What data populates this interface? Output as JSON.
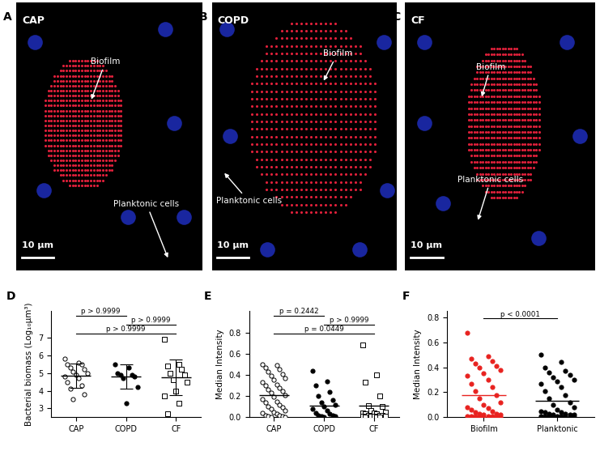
{
  "images": [
    {
      "panel": "A",
      "label": "CAP",
      "annotations": [
        "Biofilm",
        "Planktonic cells"
      ],
      "scale_bar": "10 μm"
    },
    {
      "panel": "B",
      "label": "COPD",
      "annotations": [
        "Biofilm",
        "Planktonic cells"
      ],
      "scale_bar": "10 μm"
    },
    {
      "panel": "C",
      "label": "CF",
      "annotations": [
        "Biofilm",
        "Planktonic cells"
      ],
      "scale_bar": "10 μm"
    }
  ],
  "chart_data": [
    {
      "type": "scatter",
      "title": "D",
      "y_label": "Bacterial biomass (Log₁₀µm³)",
      "ylim": [
        2.5,
        8.5
      ],
      "yticks": [
        3,
        4,
        5,
        6,
        7
      ],
      "series": [
        {
          "name": "CAP",
          "marker": "open_circle",
          "color": "#000000",
          "values": [
            5.8,
            5.6,
            5.5,
            5.5,
            5.3,
            5.2,
            5.1,
            5.0,
            4.9,
            4.8,
            4.7,
            4.5,
            4.3,
            4.1,
            3.8,
            3.5
          ],
          "mean": 4.85,
          "error": 0.7
        },
        {
          "name": "COPD",
          "marker": "circle",
          "color": "#000000",
          "values": [
            5.5,
            5.3,
            5.0,
            4.9,
            4.9,
            4.8,
            4.7,
            4.2,
            3.3
          ],
          "mean": 4.8,
          "error": 0.7
        },
        {
          "name": "CF",
          "marker": "open_square",
          "color": "#000000",
          "values": [
            6.9,
            5.5,
            5.4,
            5.2,
            5.0,
            4.9,
            4.6,
            4.5,
            4.0,
            3.7,
            3.3,
            2.7
          ],
          "mean": 4.75,
          "error": 1.0
        }
      ],
      "comparisons": [
        {
          "groups": [
            "CAP",
            "COPD"
          ],
          "text": "p > 0.9999"
        },
        {
          "groups": [
            "COPD",
            "CF"
          ],
          "text": "p > 0.9999"
        },
        {
          "groups": [
            "CAP",
            "CF"
          ],
          "text": "p > 0.9999"
        }
      ]
    },
    {
      "type": "scatter",
      "title": "E",
      "y_label": "Median Intensity",
      "ylim": [
        0.0,
        1.0
      ],
      "yticks": [
        0.0,
        0.2,
        0.4,
        0.6,
        0.8
      ],
      "series": [
        {
          "name": "CAP",
          "marker": "open_circle",
          "color": "#000000",
          "values": [
            0.5,
            0.49,
            0.47,
            0.45,
            0.43,
            0.41,
            0.39,
            0.37,
            0.35,
            0.33,
            0.31,
            0.3,
            0.28,
            0.26,
            0.25,
            0.23,
            0.21,
            0.19,
            0.17,
            0.15,
            0.14,
            0.12,
            0.1,
            0.09,
            0.08,
            0.06,
            0.05,
            0.04,
            0.03,
            0.02,
            0.02,
            0.01,
            0.01,
            0.005,
            0.0
          ],
          "mean": 0.21
        },
        {
          "name": "COPD",
          "marker": "circle",
          "color": "#000000",
          "values": [
            0.44,
            0.34,
            0.3,
            0.24,
            0.2,
            0.16,
            0.14,
            0.12,
            0.1,
            0.08,
            0.06,
            0.04,
            0.03,
            0.02,
            0.02,
            0.01,
            0.01,
            0.005
          ],
          "mean": 0.11
        },
        {
          "name": "CF",
          "marker": "open_square",
          "color": "#000000",
          "values": [
            0.68,
            0.4,
            0.33,
            0.2,
            0.11,
            0.1,
            0.06,
            0.05,
            0.04,
            0.04,
            0.03,
            0.03,
            0.02,
            0.02,
            0.02,
            0.01,
            0.01,
            0.01,
            0.01,
            0.005,
            0.005,
            0.0
          ],
          "mean": 0.11
        }
      ],
      "comparisons": [
        {
          "groups": [
            "CAP",
            "COPD"
          ],
          "text": "p = 0.2442"
        },
        {
          "groups": [
            "COPD",
            "CF"
          ],
          "text": "p > 0.9999"
        },
        {
          "groups": [
            "CAP",
            "CF"
          ],
          "text": "p = 0.0449"
        }
      ]
    },
    {
      "type": "scatter",
      "title": "F",
      "y_label": "Median Intensity",
      "ylim": [
        0.0,
        0.85
      ],
      "yticks": [
        0.0,
        0.2,
        0.4,
        0.6,
        0.8
      ],
      "series": [
        {
          "name": "Biofilm",
          "marker": "circle",
          "color": "#e8221f",
          "values": [
            0.68,
            0.49,
            0.47,
            0.45,
            0.43,
            0.41,
            0.4,
            0.38,
            0.35,
            0.33,
            0.3,
            0.27,
            0.24,
            0.21,
            0.18,
            0.15,
            0.12,
            0.1,
            0.08,
            0.07,
            0.06,
            0.05,
            0.04,
            0.03,
            0.03,
            0.02,
            0.02,
            0.01,
            0.01,
            0.01,
            0.005,
            0.005,
            0.0,
            0.0,
            0.0,
            0.0
          ],
          "mean": 0.18
        },
        {
          "name": "Planktonic",
          "marker": "circle",
          "color": "#000000",
          "values": [
            0.5,
            0.44,
            0.4,
            0.37,
            0.36,
            0.34,
            0.32,
            0.3,
            0.29,
            0.27,
            0.24,
            0.21,
            0.18,
            0.15,
            0.12,
            0.1,
            0.08,
            0.06,
            0.05,
            0.04,
            0.04,
            0.03,
            0.03,
            0.02,
            0.02,
            0.02,
            0.01,
            0.01,
            0.01,
            0.01,
            0.005,
            0.005,
            0.0,
            0.0,
            0.0,
            0.0
          ],
          "mean": 0.13
        }
      ],
      "comparisons": [
        {
          "groups": [
            "Biofilm",
            "Planktonic"
          ],
          "text": "p < 0.0001"
        }
      ]
    }
  ]
}
